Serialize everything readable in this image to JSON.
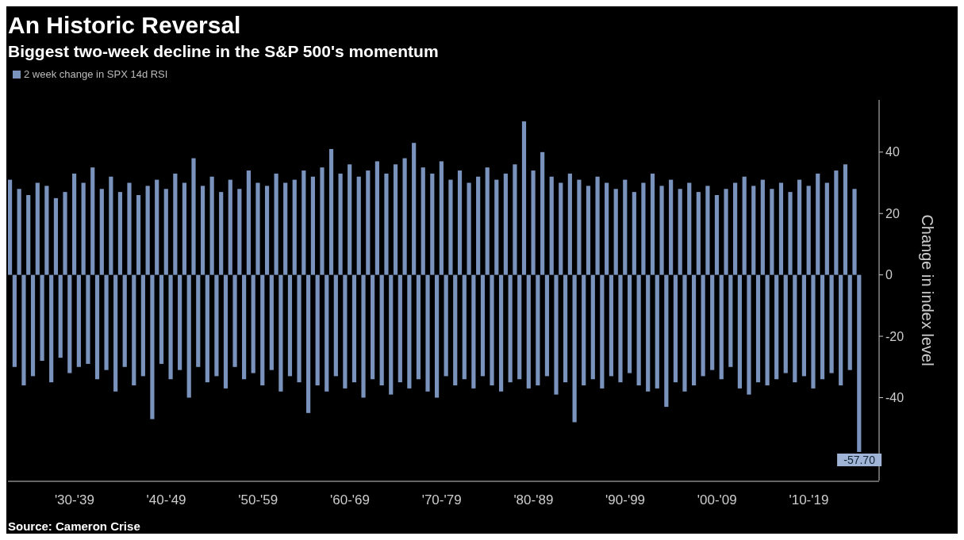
{
  "chart_data": {
    "type": "bar",
    "title": "An Historic Reversal",
    "subtitle": "Biggest two-week decline in the S&P 500's momentum",
    "ylabel": "Change in index level",
    "legend": "top left",
    "categories": [
      null,
      null,
      null,
      null,
      null,
      null,
      null,
      null,
      null,
      null,
      null,
      null,
      null,
      null,
      "'30-'39",
      null,
      null,
      null,
      null,
      null,
      null,
      null,
      null,
      null,
      null,
      null,
      null,
      null,
      null,
      null,
      null,
      null,
      null,
      null,
      "'40-'49",
      null,
      null,
      null,
      null,
      null,
      null,
      null,
      null,
      null,
      null,
      null,
      null,
      null,
      null,
      null,
      null,
      null,
      null,
      null,
      "'50-'59",
      null,
      null,
      null,
      null,
      null,
      null,
      null,
      null,
      null,
      null,
      null,
      null,
      null,
      null,
      null,
      null,
      null,
      null,
      null,
      "'60-'69",
      null,
      null,
      null,
      null,
      null,
      null,
      null,
      null,
      null,
      null,
      null,
      null,
      null,
      null,
      null,
      null,
      null,
      null,
      null,
      "'70-'79",
      null,
      null,
      null,
      null,
      null,
      null,
      null,
      null,
      null,
      null,
      null,
      null,
      null,
      null,
      null,
      null,
      null,
      null,
      null,
      "'80-'89",
      null,
      null,
      null,
      null,
      null,
      null,
      null,
      null,
      null,
      null,
      null,
      null,
      null,
      null,
      null,
      null,
      null,
      null,
      null,
      "'90-'99",
      null,
      null,
      null,
      null,
      null,
      null,
      null,
      null,
      null,
      null,
      null,
      null,
      null,
      null,
      null,
      null,
      null,
      null,
      null,
      "'00-'09",
      null,
      null,
      null,
      null,
      null,
      null,
      null,
      null,
      null,
      null,
      null,
      null,
      null,
      null,
      null,
      null,
      null,
      null,
      null,
      "'10-'19",
      null,
      null,
      null,
      null,
      null,
      null,
      null,
      null,
      null,
      null,
      null
    ],
    "ylim": [
      -67,
      57
    ],
    "yticks": [
      40,
      20,
      0,
      -20,
      -40
    ],
    "series": [
      {
        "name": "2 week change in SPX 14d RSI",
        "color": "#7a93bd",
        "values": [
          31,
          -30,
          28,
          -36,
          26,
          -33,
          30,
          -28,
          29,
          -35,
          25,
          -27,
          27,
          -32,
          33,
          -30,
          30,
          -29,
          35,
          -34,
          28,
          -31,
          32,
          -38,
          27,
          -30,
          30,
          -36,
          26,
          -33,
          29,
          -47,
          31,
          -29,
          28,
          -34,
          33,
          -31,
          30,
          -40,
          38,
          -30,
          29,
          -35,
          32,
          -33,
          27,
          -37,
          31,
          -30,
          28,
          -34,
          34,
          -32,
          30,
          -36,
          29,
          -31,
          33,
          -38,
          30,
          -33,
          31,
          -35,
          34,
          -45,
          32,
          -36,
          35,
          -38,
          41,
          -33,
          33,
          -37,
          36,
          -35,
          32,
          -40,
          34,
          -34,
          37,
          -36,
          33,
          -39,
          36,
          -35,
          38,
          -37,
          43,
          -34,
          35,
          -38,
          33,
          -40,
          37,
          -33,
          31,
          -36,
          34,
          -34,
          30,
          -37,
          32,
          -33,
          35,
          -36,
          31,
          -38,
          33,
          -35,
          36,
          -34,
          50,
          -37,
          34,
          -36,
          40,
          -33,
          32,
          -39,
          30,
          -35,
          33,
          -48,
          31,
          -36,
          29,
          -34,
          32,
          -37,
          30,
          -33,
          28,
          -35,
          31,
          -32,
          27,
          -36,
          30,
          -38,
          33,
          -37,
          29,
          -43,
          31,
          -35,
          28,
          -38,
          30,
          -36,
          27,
          -33,
          29,
          -31,
          26,
          -34,
          28,
          -30,
          30,
          -37,
          32,
          -39,
          29,
          -35,
          31,
          -36,
          28,
          -34,
          30,
          -32,
          27,
          -35,
          31,
          -33,
          29,
          -37,
          33,
          -34,
          30,
          -32,
          34,
          -36,
          36,
          -31,
          28,
          -57.7
        ],
        "value_labels": [
          null,
          null,
          null,
          null,
          null,
          null,
          null,
          null,
          null,
          null,
          null,
          null,
          null,
          null,
          null,
          null,
          null,
          null,
          null,
          null,
          null,
          null,
          null,
          null,
          null,
          null,
          null,
          null,
          null,
          null,
          null,
          null,
          null,
          null,
          null,
          null,
          null,
          null,
          null,
          null,
          null,
          null,
          null,
          null,
          null,
          null,
          null,
          null,
          null,
          null,
          null,
          null,
          null,
          null,
          null,
          null,
          null,
          null,
          null,
          null,
          null,
          null,
          null,
          null,
          null,
          null,
          null,
          null,
          null,
          null,
          null,
          null,
          null,
          null,
          null,
          null,
          null,
          null,
          null,
          null,
          null,
          null,
          null,
          null,
          null,
          null,
          null,
          null,
          null,
          null,
          null,
          null,
          null,
          null,
          null,
          null,
          null,
          null,
          null,
          null,
          null,
          null,
          null,
          null,
          null,
          null,
          null,
          null,
          null,
          null,
          null,
          null,
          null,
          null,
          null,
          null,
          null,
          null,
          null,
          null,
          null,
          null,
          null,
          null,
          null,
          null,
          null,
          null,
          null,
          null,
          null,
          null,
          null,
          null,
          null,
          null,
          null,
          null,
          null,
          null,
          null,
          null,
          null,
          null,
          null,
          null,
          null,
          null,
          null,
          null,
          null,
          null,
          null,
          null,
          null,
          null,
          null,
          null,
          null,
          null,
          null,
          null,
          null,
          null,
          null,
          null,
          null,
          null,
          null,
          null,
          null,
          null,
          null,
          null,
          null,
          null,
          null,
          null,
          null,
          null,
          null,
          null,
          null,
          null,
          null,
          "-57.70"
        ]
      }
    ],
    "annotations": [
      "Source: Cameron Crise"
    ]
  }
}
